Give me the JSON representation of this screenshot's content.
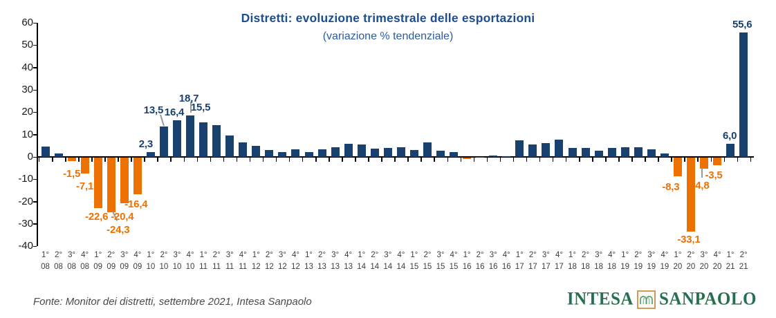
{
  "chart_data": {
    "type": "bar",
    "title": "Distretti: evoluzione trimestrale delle esportazioni",
    "subtitle": "(variazione % tendenziale)",
    "xlabel": "",
    "ylabel": "",
    "ylim": [
      -40,
      60
    ],
    "yticks": [
      60,
      50,
      40,
      30,
      20,
      10,
      0,
      -10,
      -20,
      -30,
      -40
    ],
    "grid": false,
    "legend": "none",
    "categories": [
      "1° 08",
      "2° 08",
      "3° 08",
      "4° 08",
      "1° 09",
      "2° 09",
      "3° 09",
      "4° 09",
      "1° 10",
      "2° 10",
      "3° 10",
      "4° 10",
      "1° 11",
      "2° 11",
      "3° 11",
      "4° 11",
      "1° 12",
      "2° 12",
      "3° 12",
      "4° 12",
      "1° 13",
      "2° 13",
      "3° 13",
      "4° 13",
      "1° 14",
      "2° 14",
      "3° 14",
      "4° 14",
      "1° 15",
      "2° 15",
      "3° 15",
      "4° 15",
      "1° 16",
      "2° 16",
      "3° 16",
      "4° 16",
      "1° 17",
      "2° 17",
      "3° 17",
      "4° 17",
      "1° 18",
      "2° 18",
      "3° 18",
      "4° 18",
      "1° 19",
      "2° 19",
      "3° 19",
      "4° 19",
      "1° 20",
      "2° 20",
      "3° 20",
      "4° 20",
      "1° 21",
      "2° 21"
    ],
    "values": [
      4.5,
      1.6,
      -1.5,
      -7.1,
      -22.6,
      -24.3,
      -20.4,
      -16.4,
      2.3,
      13.5,
      16.4,
      18.7,
      15.5,
      14.3,
      9.5,
      6.4,
      4.9,
      3.0,
      2.2,
      3.4,
      2.1,
      3.3,
      4.4,
      5.8,
      5.6,
      3.7,
      4.0,
      4.3,
      3.2,
      6.6,
      2.7,
      2.3,
      -0.6,
      0.1,
      0.5,
      0.2,
      7.4,
      5.6,
      6.2,
      7.7,
      4.0,
      4.1,
      2.7,
      3.9,
      4.4,
      4.3,
      3.3,
      1.7,
      -8.3,
      -33.1,
      -4.8,
      -3.5,
      6.0,
      55.6
    ],
    "value_labels": [
      null,
      null,
      "-1,5",
      "-7,1",
      "-22,6",
      "-24,3",
      "-20,4",
      "-16,4",
      "2,3",
      "13,5",
      "16,4",
      "18,7",
      "15,5",
      null,
      null,
      null,
      null,
      null,
      null,
      null,
      null,
      null,
      null,
      null,
      null,
      null,
      null,
      null,
      null,
      null,
      null,
      null,
      null,
      null,
      null,
      null,
      null,
      null,
      null,
      null,
      null,
      null,
      null,
      null,
      null,
      null,
      null,
      null,
      "-8,3",
      "-33,1",
      "-4,8",
      "-3,5",
      "6,0",
      "55,6"
    ],
    "colors": {
      "positive": "#18416f",
      "negative": "#ed7102"
    }
  },
  "footer": {
    "source": "Fonte: Monitor dei distretti, settembre 2021, Intesa Sanpaolo"
  },
  "logo": {
    "word1": "INTESA",
    "word2": "SANPAOLO",
    "icon": "aqueduct-arches-icon"
  }
}
